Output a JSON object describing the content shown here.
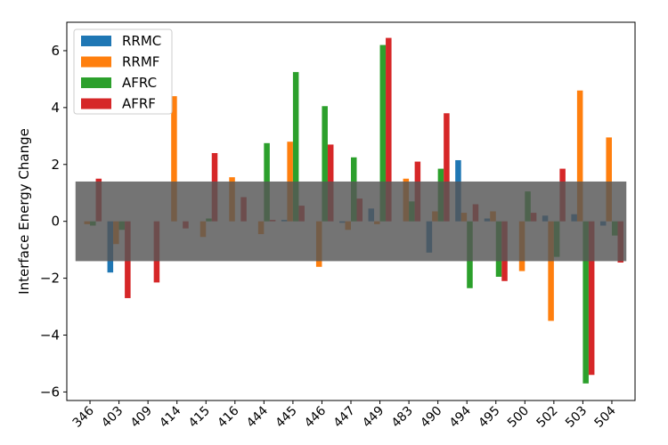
{
  "chart_data": {
    "type": "bar",
    "title": "",
    "xlabel": "",
    "ylabel": "Interface Energy Change",
    "ylim": [
      -6.3,
      7.0
    ],
    "yticks": [
      -6,
      -4,
      -2,
      0,
      2,
      4,
      6
    ],
    "ytick_labels": [
      "−6",
      "−4",
      "−2",
      "0",
      "2",
      "4",
      "6"
    ],
    "categories": [
      "346",
      "403",
      "409",
      "414",
      "415",
      "416",
      "444",
      "445",
      "446",
      "447",
      "449",
      "483",
      "490",
      "494",
      "495",
      "500",
      "502",
      "503",
      "504"
    ],
    "series": [
      {
        "name": "RRMC",
        "color": "#1f77b4",
        "values": [
          0.0,
          -1.8,
          0.0,
          0.0,
          0.0,
          0.0,
          0.0,
          0.05,
          0.0,
          -0.05,
          0.45,
          0.0,
          -1.1,
          2.15,
          0.1,
          0.0,
          0.2,
          0.25,
          -0.15
        ]
      },
      {
        "name": "RRMF",
        "color": "#ff7f0e",
        "values": [
          -0.1,
          -0.8,
          0.0,
          4.4,
          -0.55,
          1.55,
          -0.45,
          2.8,
          -1.6,
          -0.3,
          -0.1,
          1.5,
          0.35,
          0.3,
          0.35,
          -1.75,
          -3.5,
          4.6,
          2.95
        ]
      },
      {
        "name": "AFRC",
        "color": "#2ca02c",
        "values": [
          -0.15,
          -0.3,
          0.0,
          0.0,
          0.1,
          0.0,
          2.75,
          5.25,
          4.05,
          2.25,
          6.2,
          0.7,
          1.85,
          -2.35,
          -1.95,
          1.05,
          -1.25,
          -5.7,
          -0.5
        ]
      },
      {
        "name": "AFRF",
        "color": "#d62728",
        "values": [
          1.5,
          -2.7,
          -2.15,
          -0.25,
          2.4,
          0.85,
          0.05,
          0.55,
          2.7,
          0.8,
          6.45,
          2.1,
          3.8,
          0.6,
          -2.1,
          0.3,
          1.85,
          -5.4,
          -1.45
        ]
      }
    ],
    "band": {
      "lower": -1.4,
      "upper": 1.4,
      "color": "#555555",
      "opacity": 0.82
    },
    "legend": "top-left",
    "grid": false
  }
}
